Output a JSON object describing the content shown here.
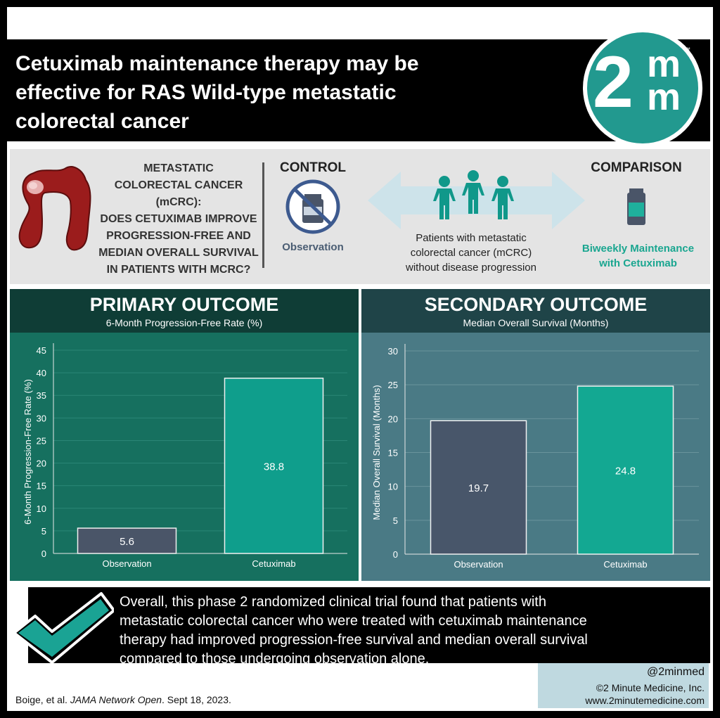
{
  "header": {
    "title_lines": [
      "Cetuximab maintenance therapy may be",
      "effective for RAS Wild-type metastatic",
      "colorectal cancer"
    ],
    "logo": {
      "big": "2",
      "small_top": "m",
      "small_bottom": "m",
      "tm": "™"
    }
  },
  "pico": {
    "question_lines": [
      "METASTATIC",
      "COLORECTAL CANCER",
      "(mCRC):",
      "DOES CETUXIMAB IMPROVE",
      "PROGRESSION-FREE AND",
      "MEDIAN OVERALL SURVIVAL",
      "IN PATIENTS WITH MCRC?"
    ],
    "control_head": "CONTROL",
    "control_label": "Observation",
    "population_lines": [
      "Patients with metastatic",
      "colorectal cancer (mCRC)",
      "without disease progression"
    ],
    "comparison_head": "COMPARISON",
    "comparison_lines": [
      "Biweekly Maintenance",
      "with Cetuximab"
    ],
    "icons": [
      "colon-icon",
      "no-drug-icon",
      "patients-icon",
      "double-arrow-icon",
      "drug-vial-icon"
    ]
  },
  "chart_data": [
    {
      "type": "bar",
      "title": "PRIMARY OUTCOME",
      "subtitle": "6-Month Progression-Free Rate (%)",
      "ylabel": "6-Month Progression-Free Rate (%)",
      "categories": [
        "Observation",
        "Cetuximab"
      ],
      "values": [
        5.6,
        38.8
      ],
      "value_labels": [
        "5.6",
        "38.8"
      ],
      "ylim": [
        0,
        45
      ],
      "yticks": [
        0,
        5,
        10,
        15,
        20,
        25,
        30,
        35,
        40,
        45
      ],
      "grid": true,
      "colors": [
        "#4a5568",
        "#0f9e8c"
      ]
    },
    {
      "type": "bar",
      "title": "SECONDARY OUTCOME",
      "subtitle": "Median Overall Survival (Months)",
      "ylabel": "Median Overall Survival (Months)",
      "categories": [
        "Observation",
        "Cetuximab"
      ],
      "values": [
        19.7,
        24.8
      ],
      "value_labels": [
        "19.7",
        "24.8"
      ],
      "ylim": [
        0,
        30
      ],
      "yticks": [
        0,
        5,
        10,
        15,
        20,
        25,
        30
      ],
      "grid": true,
      "colors": [
        "#48566a",
        "#13a892"
      ]
    }
  ],
  "conclusion": {
    "lines": [
      "Overall, this phase 2 randomized clinical trial found that patients with",
      "metastatic colorectal cancer who were treated with cetuximab maintenance",
      "therapy had improved progression-free survival and median overall survival",
      "compared to those undergoing observation alone."
    ],
    "icon": "checkmark-icon"
  },
  "footer": {
    "citation_authors": "Boige, et al. ",
    "citation_journal": "JAMA Network Open",
    "citation_date": ". Sept 18, 2023.",
    "handle": "@2minmed",
    "copyright": "©2 Minute Medicine, Inc.",
    "website": "www.2minutemedicine.com"
  },
  "colors": {
    "teal_brand": "#22998f",
    "primary_panel": "#16705f",
    "secondary_panel": "#4a7a85",
    "comparison_text": "#1aa690"
  }
}
